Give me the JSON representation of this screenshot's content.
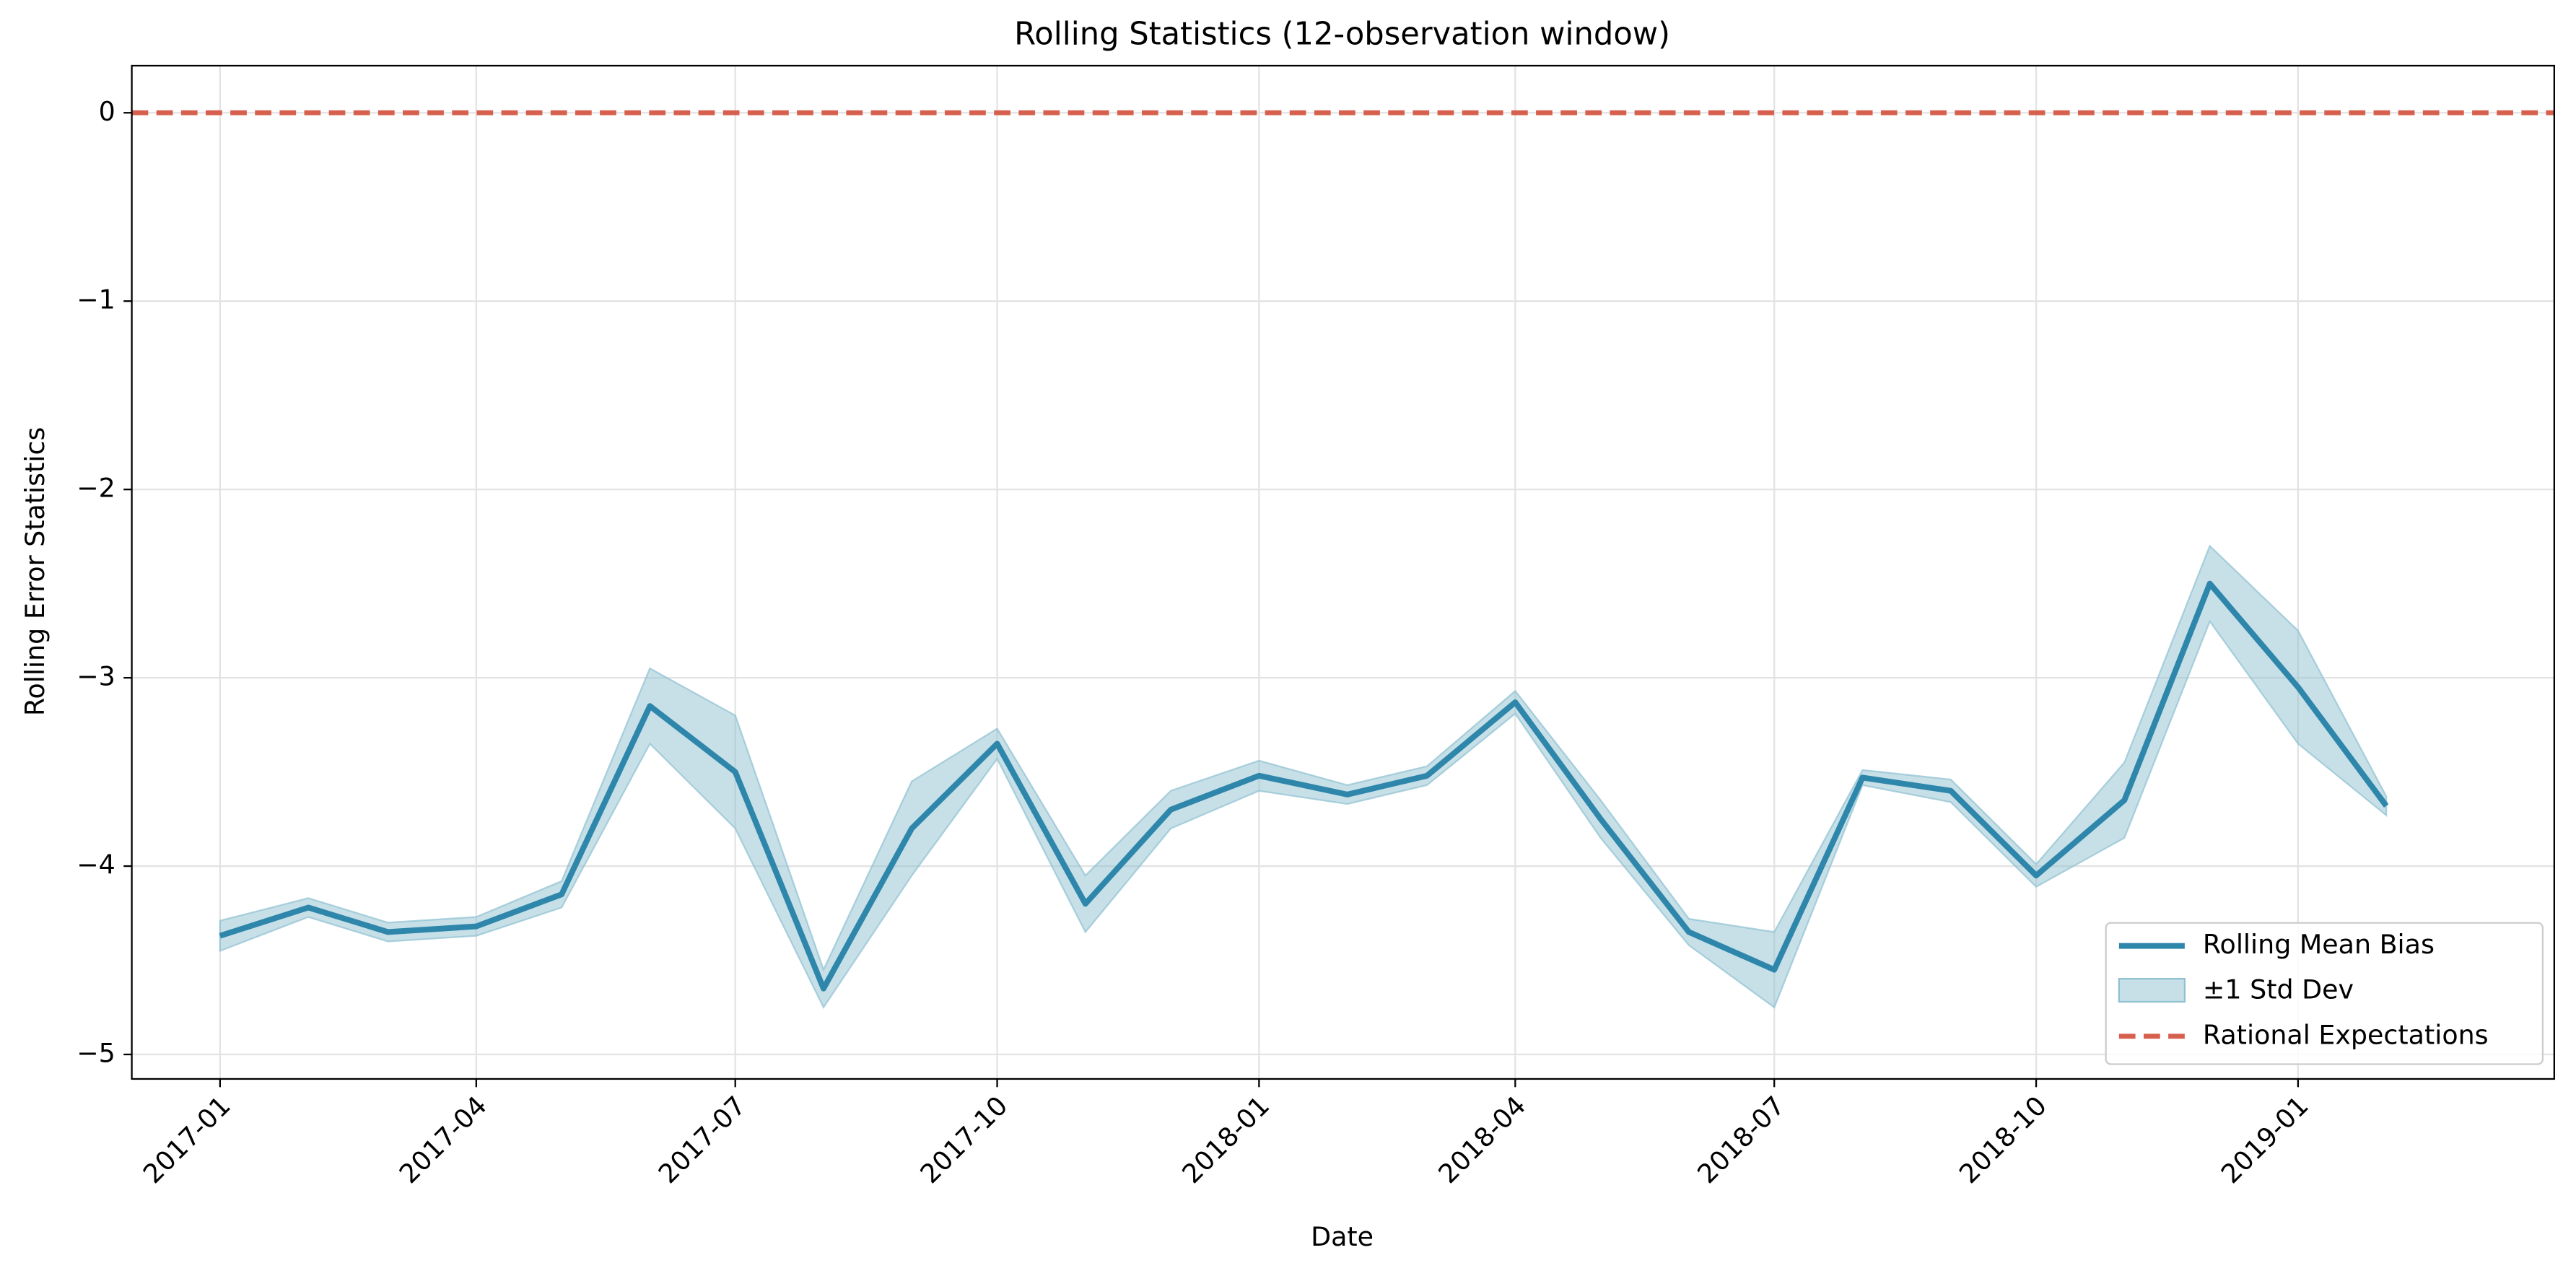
{
  "chart_data": {
    "type": "line",
    "title": "Rolling Statistics (12-observation window)",
    "x_label": "Date",
    "y_label": "Rolling Error Statistics",
    "x": [
      "2017-01",
      "2017-02",
      "2017-03",
      "2017-04",
      "2017-05",
      "2017-06",
      "2017-07",
      "2017-08",
      "2017-09",
      "2017-10",
      "2017-11",
      "2017-12",
      "2018-01",
      "2018-02",
      "2018-03",
      "2018-04",
      "2018-05",
      "2018-06",
      "2018-07",
      "2018-08",
      "2018-09",
      "2018-10",
      "2018-11",
      "2018-12",
      "2019-01",
      "2019-02"
    ],
    "series": [
      {
        "name": "Rolling Mean Bias",
        "color": "#2e86ab",
        "values": [
          -4.37,
          -4.22,
          -4.35,
          -4.32,
          -4.15,
          -3.15,
          -3.5,
          -4.65,
          -3.8,
          -3.35,
          -4.2,
          -3.7,
          -3.52,
          -3.62,
          -3.52,
          -3.13,
          -3.75,
          -4.35,
          -4.55,
          -3.53,
          -3.6,
          -4.05,
          -3.65,
          -2.5,
          -3.05,
          -3.68
        ]
      }
    ],
    "band": {
      "name": "±1 Std Dev",
      "color": "#8fc1d1",
      "values": [
        0.08,
        0.05,
        0.05,
        0.05,
        0.07,
        0.2,
        0.3,
        0.1,
        0.25,
        0.08,
        0.15,
        0.1,
        0.08,
        0.05,
        0.05,
        0.06,
        0.1,
        0.07,
        0.2,
        0.04,
        0.06,
        0.06,
        0.2,
        0.2,
        0.3,
        0.05
      ]
    },
    "reference_line": {
      "name": "Rational Expectations",
      "value": 0,
      "color": "#d6604d"
    },
    "xlim": [
      "2016-12",
      "2019-04"
    ],
    "xticks": [
      "2017-01",
      "2017-04",
      "2017-07",
      "2017-10",
      "2018-01",
      "2018-04",
      "2018-07",
      "2018-10",
      "2019-01"
    ],
    "ylim": [
      -5.13,
      0.25
    ],
    "yticks": [
      0,
      {
        "value": -1,
        "label": "−1"
      },
      {
        "value": -2,
        "label": "−2"
      },
      {
        "value": -3,
        "label": "−3"
      },
      {
        "value": -4,
        "label": "−4"
      },
      {
        "value": -5,
        "label": "−5"
      }
    ],
    "grid": true,
    "legend": "lower right"
  }
}
